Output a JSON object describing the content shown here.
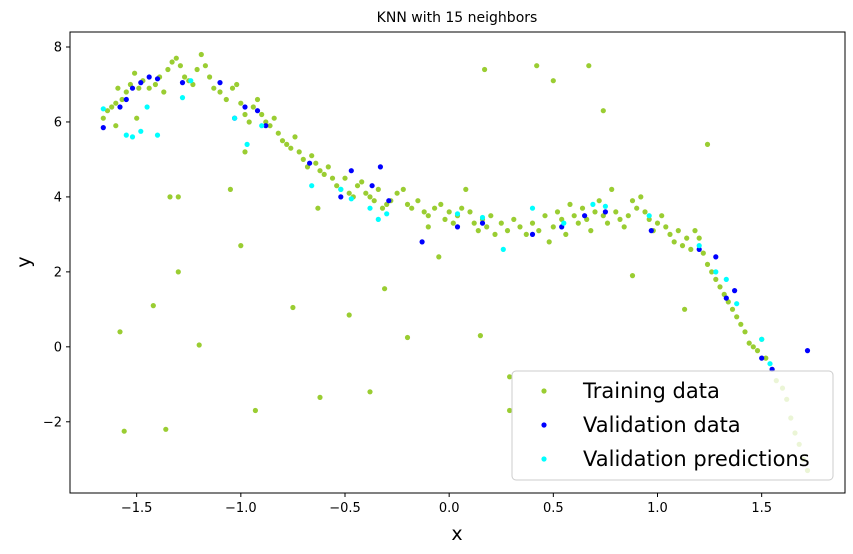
{
  "chart_data": {
    "type": "scatter",
    "title": "KNN with 15 neighbors",
    "xlabel": "x",
    "ylabel": "y",
    "xlim": [
      -1.82,
      1.9
    ],
    "ylim": [
      -3.9,
      8.4
    ],
    "xticks": [
      -1.5,
      -1.0,
      -0.5,
      0.0,
      0.5,
      1.0,
      1.5
    ],
    "xtick_labels": [
      "−1.5",
      "−1.0",
      "−0.5",
      "0.0",
      "0.5",
      "1.0",
      "1.5"
    ],
    "yticks": [
      -2,
      0,
      2,
      4,
      6,
      8
    ],
    "ytick_labels": [
      "−2",
      "0",
      "2",
      "4",
      "6",
      "8"
    ],
    "grid": false,
    "legend_position": "lower-right",
    "series": [
      {
        "name": "Training data",
        "color": "#9acd32",
        "points": [
          [
            -1.66,
            6.1
          ],
          [
            -1.64,
            6.3
          ],
          [
            -1.62,
            6.4
          ],
          [
            -1.6,
            6.5
          ],
          [
            -1.59,
            6.9
          ],
          [
            -1.57,
            6.6
          ],
          [
            -1.55,
            6.8
          ],
          [
            -1.53,
            7.0
          ],
          [
            -1.51,
            7.3
          ],
          [
            -1.49,
            6.9
          ],
          [
            -1.47,
            7.1
          ],
          [
            -1.44,
            6.9
          ],
          [
            -1.41,
            7.0
          ],
          [
            -1.39,
            7.2
          ],
          [
            -1.37,
            6.8
          ],
          [
            -1.35,
            7.4
          ],
          [
            -1.33,
            7.6
          ],
          [
            -1.31,
            7.7
          ],
          [
            -1.29,
            7.5
          ],
          [
            -1.27,
            7.2
          ],
          [
            -1.25,
            7.1
          ],
          [
            -1.23,
            7.0
          ],
          [
            -1.21,
            7.4
          ],
          [
            -1.19,
            7.8
          ],
          [
            -1.17,
            7.5
          ],
          [
            -1.15,
            7.2
          ],
          [
            -1.13,
            6.9
          ],
          [
            -1.1,
            6.8
          ],
          [
            -1.07,
            6.6
          ],
          [
            -1.04,
            6.9
          ],
          [
            -1.02,
            7.0
          ],
          [
            -1.0,
            6.5
          ],
          [
            -0.98,
            6.2
          ],
          [
            -0.96,
            6.0
          ],
          [
            -0.94,
            6.4
          ],
          [
            -0.92,
            6.6
          ],
          [
            -0.9,
            6.2
          ],
          [
            -0.88,
            6.0
          ],
          [
            -0.86,
            5.9
          ],
          [
            -0.84,
            6.1
          ],
          [
            -0.82,
            5.7
          ],
          [
            -0.8,
            5.5
          ],
          [
            -0.78,
            5.4
          ],
          [
            -0.76,
            5.3
          ],
          [
            -0.74,
            5.6
          ],
          [
            -0.72,
            5.2
          ],
          [
            -0.7,
            5.0
          ],
          [
            -0.68,
            4.8
          ],
          [
            -0.66,
            5.1
          ],
          [
            -0.64,
            4.9
          ],
          [
            -0.62,
            4.7
          ],
          [
            -0.6,
            4.6
          ],
          [
            -0.58,
            4.8
          ],
          [
            -0.56,
            4.5
          ],
          [
            -0.54,
            4.3
          ],
          [
            -0.52,
            4.2
          ],
          [
            -0.5,
            4.5
          ],
          [
            -0.48,
            4.1
          ],
          [
            -0.46,
            4.0
          ],
          [
            -0.44,
            4.3
          ],
          [
            -0.42,
            4.4
          ],
          [
            -0.4,
            4.1
          ],
          [
            -0.38,
            4.0
          ],
          [
            -0.36,
            3.9
          ],
          [
            -0.34,
            4.2
          ],
          [
            -0.32,
            3.7
          ],
          [
            -0.3,
            3.8
          ],
          [
            -0.28,
            3.9
          ],
          [
            -0.25,
            4.1
          ],
          [
            -0.22,
            4.2
          ],
          [
            -0.2,
            3.8
          ],
          [
            -0.18,
            3.7
          ],
          [
            -0.15,
            3.9
          ],
          [
            -0.12,
            3.6
          ],
          [
            -0.1,
            3.5
          ],
          [
            -0.07,
            3.7
          ],
          [
            -0.04,
            3.8
          ],
          [
            -0.02,
            3.4
          ],
          [
            0.0,
            3.6
          ],
          [
            0.02,
            3.3
          ],
          [
            0.04,
            3.5
          ],
          [
            0.06,
            3.7
          ],
          [
            0.08,
            4.2
          ],
          [
            0.1,
            3.6
          ],
          [
            0.12,
            3.3
          ],
          [
            0.14,
            3.1
          ],
          [
            0.16,
            3.4
          ],
          [
            0.18,
            3.2
          ],
          [
            0.2,
            3.5
          ],
          [
            0.22,
            3.0
          ],
          [
            0.25,
            3.3
          ],
          [
            0.28,
            3.1
          ],
          [
            0.31,
            3.4
          ],
          [
            0.34,
            3.2
          ],
          [
            0.37,
            3.0
          ],
          [
            0.4,
            3.3
          ],
          [
            0.43,
            3.1
          ],
          [
            0.46,
            3.5
          ],
          [
            0.48,
            2.8
          ],
          [
            0.5,
            3.2
          ],
          [
            0.52,
            3.6
          ],
          [
            0.54,
            3.4
          ],
          [
            0.56,
            3.0
          ],
          [
            0.58,
            3.8
          ],
          [
            0.6,
            3.5
          ],
          [
            0.62,
            3.3
          ],
          [
            0.64,
            3.7
          ],
          [
            0.66,
            3.4
          ],
          [
            0.68,
            3.1
          ],
          [
            0.7,
            3.6
          ],
          [
            0.72,
            3.9
          ],
          [
            0.74,
            3.5
          ],
          [
            0.76,
            3.3
          ],
          [
            0.78,
            4.2
          ],
          [
            0.8,
            3.6
          ],
          [
            0.82,
            3.4
          ],
          [
            0.84,
            3.2
          ],
          [
            0.86,
            3.5
          ],
          [
            0.88,
            3.9
          ],
          [
            0.9,
            3.7
          ],
          [
            0.92,
            4.0
          ],
          [
            0.94,
            3.6
          ],
          [
            0.96,
            3.4
          ],
          [
            0.98,
            3.1
          ],
          [
            1.0,
            3.3
          ],
          [
            1.02,
            3.5
          ],
          [
            1.04,
            3.2
          ],
          [
            1.06,
            3.0
          ],
          [
            1.08,
            2.8
          ],
          [
            1.1,
            3.1
          ],
          [
            1.12,
            2.7
          ],
          [
            1.14,
            2.9
          ],
          [
            1.16,
            2.6
          ],
          [
            1.18,
            3.1
          ],
          [
            1.2,
            2.9
          ],
          [
            1.22,
            2.5
          ],
          [
            1.24,
            2.2
          ],
          [
            1.26,
            2.0
          ],
          [
            1.28,
            1.8
          ],
          [
            1.3,
            1.6
          ],
          [
            1.32,
            1.4
          ],
          [
            1.34,
            1.2
          ],
          [
            1.36,
            1.0
          ],
          [
            1.38,
            0.8
          ],
          [
            1.4,
            0.6
          ],
          [
            1.42,
            0.4
          ],
          [
            1.44,
            0.1
          ],
          [
            1.46,
            0.0
          ],
          [
            1.48,
            -0.1
          ],
          [
            1.5,
            0.2
          ],
          [
            1.52,
            -0.3
          ],
          [
            1.55,
            -0.6
          ],
          [
            1.57,
            -0.9
          ],
          [
            1.6,
            -1.1
          ],
          [
            1.62,
            -1.4
          ],
          [
            1.64,
            -1.9
          ],
          [
            1.66,
            -2.3
          ],
          [
            1.68,
            -2.6
          ],
          [
            1.7,
            -3.0
          ],
          [
            1.72,
            -3.3
          ],
          [
            -1.58,
            0.4
          ],
          [
            -1.56,
            -2.25
          ],
          [
            -1.42,
            1.1
          ],
          [
            -1.36,
            -2.2
          ],
          [
            -1.3,
            2.0
          ],
          [
            -1.2,
            0.05
          ],
          [
            -1.05,
            4.2
          ],
          [
            -1.0,
            2.7
          ],
          [
            -0.93,
            -1.7
          ],
          [
            -0.75,
            1.05
          ],
          [
            -0.62,
            -1.35
          ],
          [
            -0.48,
            0.85
          ],
          [
            -0.38,
            -1.2
          ],
          [
            -0.31,
            1.55
          ],
          [
            -0.2,
            0.25
          ],
          [
            0.17,
            7.4
          ],
          [
            0.42,
            7.5
          ],
          [
            0.5,
            7.1
          ],
          [
            0.67,
            7.5
          ],
          [
            0.74,
            6.3
          ],
          [
            0.15,
            0.3
          ],
          [
            0.29,
            -0.8
          ],
          [
            0.29,
            -1.7
          ],
          [
            0.88,
            1.9
          ],
          [
            1.24,
            5.4
          ],
          [
            1.13,
            1.0
          ],
          [
            -1.34,
            4.0
          ],
          [
            -1.3,
            4.0
          ],
          [
            -0.63,
            3.7
          ],
          [
            -0.98,
            5.2
          ],
          [
            -1.6,
            5.9
          ],
          [
            -1.5,
            6.1
          ],
          [
            -0.1,
            3.2
          ],
          [
            -0.05,
            2.4
          ]
        ]
      },
      {
        "name": "Validation data",
        "color": "#0000ff",
        "points": [
          [
            -1.66,
            5.85
          ],
          [
            -1.58,
            6.4
          ],
          [
            -1.55,
            6.6
          ],
          [
            -1.52,
            6.9
          ],
          [
            -1.48,
            7.05
          ],
          [
            -1.44,
            7.2
          ],
          [
            -1.4,
            7.15
          ],
          [
            -1.28,
            7.05
          ],
          [
            -1.1,
            7.05
          ],
          [
            -1.03,
            6.1
          ],
          [
            -0.98,
            6.4
          ],
          [
            -0.92,
            6.3
          ],
          [
            -0.88,
            5.9
          ],
          [
            -0.67,
            4.9
          ],
          [
            -0.52,
            4.0
          ],
          [
            -0.47,
            4.7
          ],
          [
            -0.37,
            4.3
          ],
          [
            -0.33,
            4.8
          ],
          [
            -0.29,
            3.9
          ],
          [
            -0.13,
            2.8
          ],
          [
            0.04,
            3.2
          ],
          [
            0.16,
            3.3
          ],
          [
            0.4,
            3.0
          ],
          [
            0.54,
            3.2
          ],
          [
            0.65,
            3.5
          ],
          [
            0.75,
            3.6
          ],
          [
            0.97,
            3.1
          ],
          [
            1.2,
            2.6
          ],
          [
            1.28,
            2.4
          ],
          [
            1.33,
            1.3
          ],
          [
            1.37,
            1.5
          ],
          [
            1.5,
            -0.3
          ],
          [
            1.55,
            -0.6
          ],
          [
            1.72,
            -0.1
          ]
        ]
      },
      {
        "name": "Validation predictions",
        "color": "#00ffff",
        "points": [
          [
            -1.66,
            6.35
          ],
          [
            -1.55,
            5.65
          ],
          [
            -1.52,
            5.6
          ],
          [
            -1.48,
            5.75
          ],
          [
            -1.45,
            6.4
          ],
          [
            -1.4,
            5.65
          ],
          [
            -1.28,
            6.65
          ],
          [
            -1.24,
            7.1
          ],
          [
            -1.03,
            6.1
          ],
          [
            -0.97,
            5.4
          ],
          [
            -0.9,
            5.9
          ],
          [
            -0.66,
            4.3
          ],
          [
            -0.52,
            4.2
          ],
          [
            -0.47,
            3.95
          ],
          [
            -0.38,
            3.7
          ],
          [
            -0.34,
            3.4
          ],
          [
            -0.3,
            3.55
          ],
          [
            0.04,
            3.55
          ],
          [
            0.16,
            3.45
          ],
          [
            0.26,
            2.6
          ],
          [
            0.4,
            3.7
          ],
          [
            0.55,
            3.3
          ],
          [
            0.69,
            3.8
          ],
          [
            0.75,
            3.75
          ],
          [
            0.96,
            3.5
          ],
          [
            1.2,
            2.7
          ],
          [
            1.28,
            2.0
          ],
          [
            1.33,
            1.8
          ],
          [
            1.38,
            1.15
          ],
          [
            1.5,
            0.2
          ],
          [
            1.54,
            -0.45
          ]
        ]
      }
    ]
  }
}
